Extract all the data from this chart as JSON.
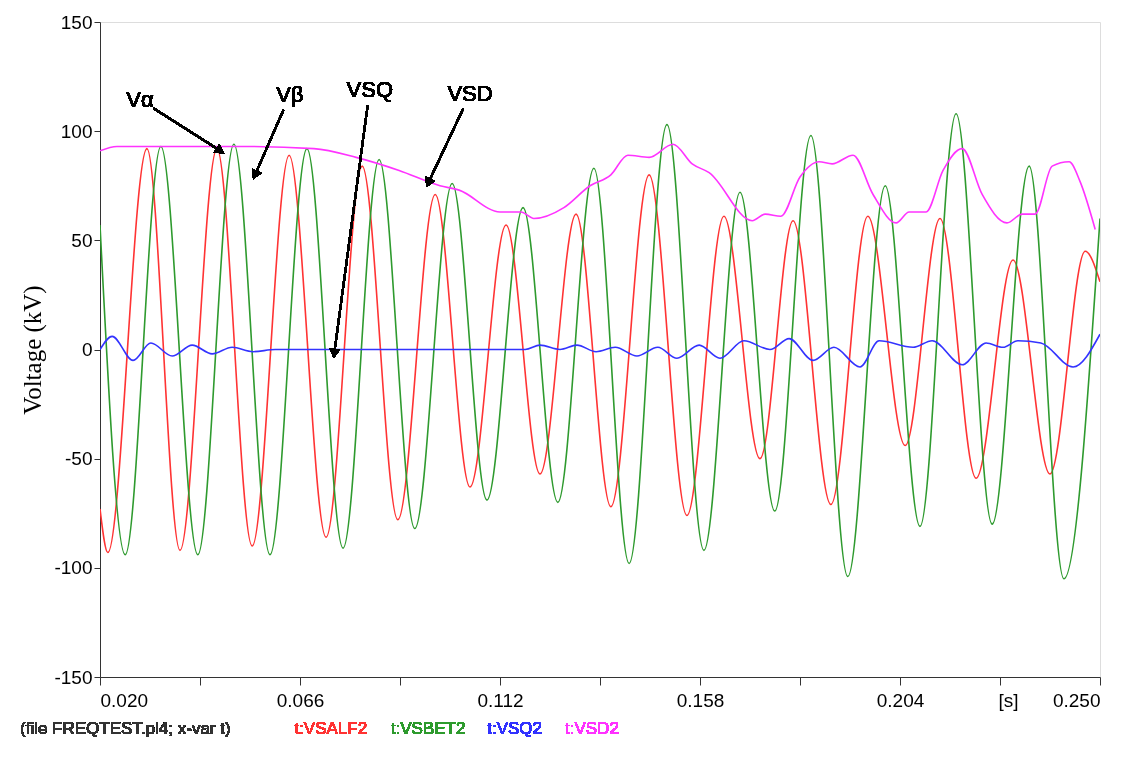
{
  "chart_data": {
    "type": "line",
    "ylabel": "Voltage (kV)",
    "xlabel": "[s]",
    "xlim": [
      0.02,
      0.25
    ],
    "ylim": [
      -150,
      150
    ],
    "xticks": [
      {
        "value": 0.02,
        "label": "0.020"
      },
      {
        "value": 0.043,
        "label": null
      },
      {
        "value": 0.066,
        "label": "0.066"
      },
      {
        "value": 0.089,
        "label": null
      },
      {
        "value": 0.112,
        "label": "0.112"
      },
      {
        "value": 0.135,
        "label": null
      },
      {
        "value": 0.158,
        "label": "0.158"
      },
      {
        "value": 0.181,
        "label": null
      },
      {
        "value": 0.204,
        "label": "0.204"
      },
      {
        "value": 0.227,
        "label": null
      },
      {
        "value": 0.25,
        "label": "0.250"
      }
    ],
    "yticks": [
      -150,
      -100,
      -50,
      0,
      50,
      100,
      150
    ],
    "grid": false,
    "legend": "bottom",
    "annotations": [
      {
        "text": "Vα",
        "x": 0.0469,
        "y": 92
      },
      "Vβ",
      {
        "text": "VSQ",
        "x": 0.074,
        "y": 0
      },
      {
        "text": "VSD",
        "x": 0.0959,
        "y": 78
      },
      "(file FREQTEST.pl4; x-var t)"
    ],
    "series": [
      {
        "name": "t:VSALF2",
        "color": "#ff3333",
        "x": [
          0.02,
          0.0218,
          0.0308,
          0.0384,
          0.0469,
          0.055,
          0.0635,
          0.072,
          0.0803,
          0.0885,
          0.0971,
          0.1051,
          0.1134,
          0.1212,
          0.1295,
          0.1375,
          0.1463,
          0.155,
          0.1635,
          0.1718,
          0.1794,
          0.1881,
          0.1966,
          0.2052,
          0.2132,
          0.2215,
          0.23,
          0.2385,
          0.2466,
          0.25
        ],
        "values": [
          -73,
          -93,
          92,
          -92,
          92,
          -90,
          89,
          -86,
          84,
          -78,
          71,
          -63,
          57,
          -57,
          62,
          -72,
          80,
          -76,
          61,
          -50,
          59,
          -71,
          61,
          -44,
          60,
          -59,
          41,
          -57,
          45,
          31
        ]
      },
      {
        "name": "t:VSBET2",
        "color": "#2e9a2e",
        "x": [
          0.02,
          0.0258,
          0.034,
          0.0425,
          0.0508,
          0.0591,
          0.0676,
          0.0759,
          0.0842,
          0.0924,
          0.101,
          0.109,
          0.1173,
          0.1253,
          0.1336,
          0.1417,
          0.1504,
          0.1589,
          0.1672,
          0.1752,
          0.1835,
          0.192,
          0.2006,
          0.2086,
          0.2169,
          0.2252,
          0.2337,
          0.2417,
          0.25
        ],
        "values": [
          57,
          -94,
          93,
          -94,
          94,
          -94,
          92,
          -91,
          87,
          -82,
          76,
          -69,
          65,
          -70,
          83,
          -98,
          103,
          -92,
          72,
          -74,
          98,
          -104,
          75,
          -81,
          108,
          -80,
          84,
          -105,
          60
        ]
      },
      {
        "name": "t:VSQ2",
        "color": "#3333ff",
        "x": [
          0.02,
          0.0228,
          0.0276,
          0.0317,
          0.0366,
          0.0412,
          0.0458,
          0.0504,
          0.0552,
          0.0603,
          0.1017,
          0.1178,
          0.1212,
          0.1258,
          0.1297,
          0.1341,
          0.1385,
          0.1435,
          0.1483,
          0.1527,
          0.1578,
          0.1626,
          0.1681,
          0.1741,
          0.1785,
          0.184,
          0.1888,
          0.1948,
          0.1992,
          0.207,
          0.2114,
          0.2183,
          0.2238,
          0.2277,
          0.2311,
          0.2364,
          0.2438,
          0.25
        ],
        "values": [
          0,
          6,
          -5,
          3,
          -3,
          2,
          -2,
          1,
          -1,
          0,
          0,
          0,
          2,
          0,
          2,
          -1,
          1,
          -3,
          1,
          -4,
          2,
          -4,
          4,
          0,
          5,
          -5,
          1,
          -8,
          4,
          1,
          4,
          -7,
          3,
          1,
          4,
          3,
          -8,
          7
        ]
      },
      {
        "name": "t:VSD2",
        "color": "#ff33ff",
        "x": [
          0.02,
          0.0239,
          0.0534,
          0.0692,
          0.0789,
          0.0888,
          0.0982,
          0.1026,
          0.112,
          0.1168,
          0.1198,
          0.1267,
          0.1327,
          0.1375,
          0.1414,
          0.1463,
          0.1518,
          0.1562,
          0.1601,
          0.17,
          0.173,
          0.1766,
          0.181,
          0.1854,
          0.1884,
          0.1932,
          0.1978,
          0.2031,
          0.2061,
          0.21,
          0.2139,
          0.2183,
          0.2229,
          0.2286,
          0.2321,
          0.2351,
          0.239,
          0.2429,
          0.2454,
          0.2489
        ],
        "values": [
          91,
          93,
          93,
          92,
          88,
          82,
          75,
          73,
          63,
          63,
          60,
          65,
          75,
          80,
          89,
          88,
          94,
          85,
          81,
          59,
          62,
          61,
          79,
          86,
          85,
          89,
          71,
          58,
          63,
          63,
          82,
          92,
          71,
          58,
          62,
          62,
          84,
          86,
          77,
          55
        ]
      }
    ]
  }
}
